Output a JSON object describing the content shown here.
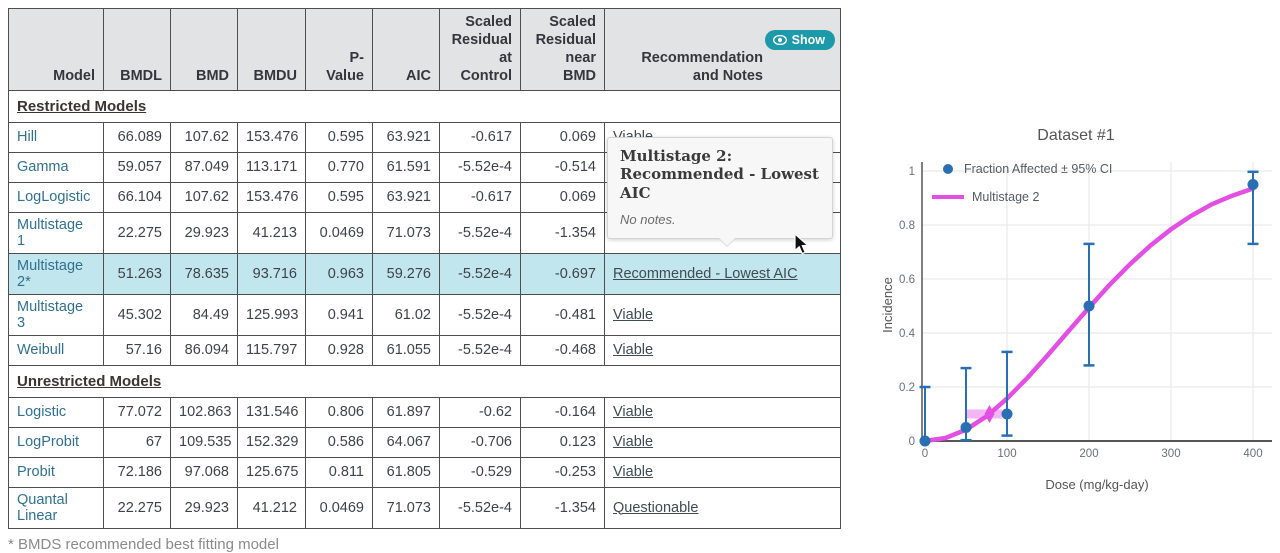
{
  "table": {
    "headers": [
      "Model",
      "BMDL",
      "BMD",
      "BMDU",
      "P-Value",
      "AIC",
      "Scaled Residual at Control",
      "Scaled Residual near BMD",
      "Recommendation and Notes"
    ],
    "show_button_label": "Show",
    "footnote": "* BMDS recommended best fitting model",
    "sections": [
      {
        "label": "Restricted Models",
        "rows": [
          {
            "model": "Hill",
            "values": [
              "66.089",
              "107.62",
              "153.476",
              "0.595",
              "63.921",
              "-0.617",
              "0.069"
            ],
            "recommendation": "Viable",
            "highlighted": false
          },
          {
            "model": "Gamma",
            "values": [
              "59.057",
              "87.049",
              "113.171",
              "0.770",
              "61.591",
              "-5.52e-4",
              "-0.514"
            ],
            "recommendation": "",
            "highlighted": false
          },
          {
            "model": "LogLogistic",
            "values": [
              "66.104",
              "107.62",
              "153.476",
              "0.595",
              "63.921",
              "-0.617",
              "0.069"
            ],
            "recommendation": "",
            "highlighted": false
          },
          {
            "model": "Multistage 1",
            "values": [
              "22.275",
              "29.923",
              "41.213",
              "0.0469",
              "71.073",
              "-5.52e-4",
              "-1.354"
            ],
            "recommendation": "",
            "highlighted": false
          },
          {
            "model": "Multistage 2*",
            "values": [
              "51.263",
              "78.635",
              "93.716",
              "0.963",
              "59.276",
              "-5.52e-4",
              "-0.697"
            ],
            "recommendation": "Recommended - Lowest AIC",
            "highlighted": true
          },
          {
            "model": "Multistage 3",
            "values": [
              "45.302",
              "84.49",
              "125.993",
              "0.941",
              "61.02",
              "-5.52e-4",
              "-0.481"
            ],
            "recommendation": "Viable",
            "highlighted": false
          },
          {
            "model": "Weibull",
            "values": [
              "57.16",
              "86.094",
              "115.797",
              "0.928",
              "61.055",
              "-5.52e-4",
              "-0.468"
            ],
            "recommendation": "Viable",
            "highlighted": false
          }
        ]
      },
      {
        "label": "Unrestricted Models",
        "rows": [
          {
            "model": "Logistic",
            "values": [
              "77.072",
              "102.863",
              "131.546",
              "0.806",
              "61.897",
              "-0.62",
              "-0.164"
            ],
            "recommendation": "Viable",
            "highlighted": false
          },
          {
            "model": "LogProbit",
            "values": [
              "67",
              "109.535",
              "152.329",
              "0.586",
              "64.067",
              "-0.706",
              "0.123"
            ],
            "recommendation": "Viable",
            "highlighted": false
          },
          {
            "model": "Probit",
            "values": [
              "72.186",
              "97.068",
              "125.675",
              "0.811",
              "61.805",
              "-0.529",
              "-0.253"
            ],
            "recommendation": "Viable",
            "highlighted": false
          },
          {
            "model": "Quantal Linear",
            "values": [
              "22.275",
              "29.923",
              "41.212",
              "0.0469",
              "71.073",
              "-5.52e-4",
              "-1.354"
            ],
            "recommendation": "Questionable",
            "highlighted": false
          }
        ]
      }
    ]
  },
  "tooltip": {
    "title": "Multistage 2: Recommended - Lowest AIC",
    "note": "No notes."
  },
  "chart_data": {
    "type": "line",
    "title": "Dataset #1",
    "xlabel": "Dose (mg/kg-day)",
    "ylabel": "Incidence",
    "xlim": [
      0,
      425
    ],
    "ylim": [
      0,
      1.03
    ],
    "xticks": [
      0,
      100,
      200,
      300,
      400
    ],
    "yticks": [
      0,
      0.2,
      0.4,
      0.6,
      0.8,
      1
    ],
    "grid": true,
    "legend_position": "top-left-inside",
    "series": [
      {
        "name": "Fraction Affected ± 95% CI",
        "type": "scatter_with_ci",
        "color": "#2a6fb2",
        "points": [
          {
            "dose": 0,
            "frac": 0.0,
            "ci_lo": 0.0,
            "ci_hi": 0.2
          },
          {
            "dose": 50,
            "frac": 0.05,
            "ci_lo": 0.003,
            "ci_hi": 0.27
          },
          {
            "dose": 100,
            "frac": 0.1,
            "ci_lo": 0.02,
            "ci_hi": 0.33
          },
          {
            "dose": 200,
            "frac": 0.5,
            "ci_lo": 0.28,
            "ci_hi": 0.73
          },
          {
            "dose": 400,
            "frac": 0.95,
            "ci_lo": 0.73,
            "ci_hi": 0.997
          }
        ]
      },
      {
        "name": "Multistage 2",
        "type": "curve",
        "color": "#e24fe2",
        "points": [
          [
            0,
            0
          ],
          [
            25,
            0.011
          ],
          [
            50,
            0.042
          ],
          [
            75,
            0.091
          ],
          [
            100,
            0.157
          ],
          [
            125,
            0.234
          ],
          [
            150,
            0.319
          ],
          [
            175,
            0.407
          ],
          [
            200,
            0.494
          ],
          [
            225,
            0.578
          ],
          [
            250,
            0.655
          ],
          [
            275,
            0.724
          ],
          [
            300,
            0.784
          ],
          [
            325,
            0.835
          ],
          [
            350,
            0.877
          ],
          [
            375,
            0.909
          ],
          [
            400,
            0.935
          ]
        ]
      }
    ],
    "bmd_marker": {
      "bmdl": 51.263,
      "bmd": 78.635,
      "bmdu": 93.716,
      "at_bmr": 0.1,
      "color": "#e24fe2"
    }
  }
}
